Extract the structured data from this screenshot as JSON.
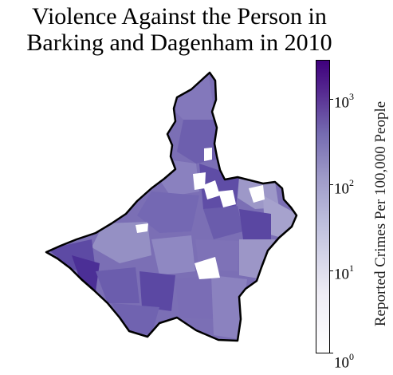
{
  "title_line1": "Violence Against the Person in",
  "title_line2": "Barking and Dagenham in 2010",
  "colorbar": {
    "label": "Reported Crimes Per 100,000 People",
    "scale": "log",
    "range": [
      1,
      2500
    ],
    "ticks": [
      {
        "base": "10",
        "exp": "0",
        "value": 1
      },
      {
        "base": "10",
        "exp": "1",
        "value": 10
      },
      {
        "base": "10",
        "exp": "2",
        "value": 100
      },
      {
        "base": "10",
        "exp": "3",
        "value": 1000
      }
    ],
    "colors": {
      "low": "#fcfbfd",
      "mid": "#9e9ac8",
      "high": "#3f007d"
    }
  },
  "map": {
    "fill_default": "#7b6fb5",
    "outline_color": "#000000",
    "no_data_color": "#ffffff"
  }
}
